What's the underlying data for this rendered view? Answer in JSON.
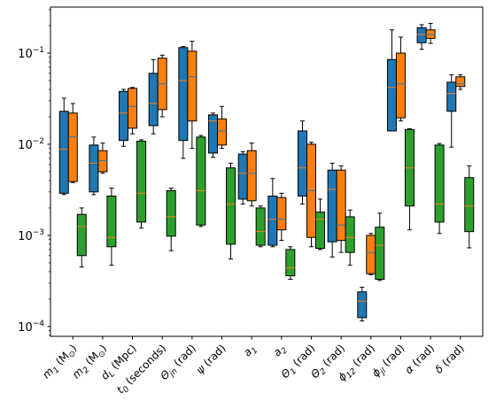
{
  "chart_data": {
    "type": "boxplot",
    "yscale": "log",
    "ylim": [
      7.8e-05,
      0.32
    ],
    "y_ticks": [
      {
        "value": 0.1,
        "base": "10",
        "exp": "−1"
      },
      {
        "value": 0.01,
        "base": "10",
        "exp": "−2"
      },
      {
        "value": 0.001,
        "base": "10",
        "exp": "−3"
      },
      {
        "value": 0.0001,
        "base": "10",
        "exp": "−4"
      }
    ],
    "categories": [
      {
        "main": "m",
        "sub": "1",
        "tail": " (M",
        "unitsub": "⊙",
        "close": ")"
      },
      {
        "main": "m",
        "sub": "2",
        "tail": " (M",
        "unitsub": "⊙",
        "close": ")"
      },
      {
        "main": "d",
        "sub": "L",
        "tail": " (Mpc)",
        "unitsub": "",
        "close": ""
      },
      {
        "main": "t",
        "sub": "0",
        "tail": " (seconds)",
        "unitsub": "",
        "close": ""
      },
      {
        "main": "Θ",
        "sub": "jn",
        "tail": " (rad)",
        "unitsub": "",
        "close": ""
      },
      {
        "main": "ψ",
        "sub": "",
        "tail": " (rad)",
        "unitsub": "",
        "close": ""
      },
      {
        "main": "a",
        "sub": "1",
        "tail": "",
        "unitsub": "",
        "close": ""
      },
      {
        "main": "a",
        "sub": "2",
        "tail": "",
        "unitsub": "",
        "close": ""
      },
      {
        "main": "Θ",
        "sub": "1",
        "tail": " (rad)",
        "unitsub": "",
        "close": ""
      },
      {
        "main": "Θ",
        "sub": "2",
        "tail": " (rad)",
        "unitsub": "",
        "close": ""
      },
      {
        "main": "ϕ",
        "sub": "12",
        "tail": " (rad)",
        "unitsub": "",
        "close": ""
      },
      {
        "main": "ϕ",
        "sub": "jl",
        "tail": " (rad)",
        "unitsub": "",
        "close": ""
      },
      {
        "main": "α",
        "sub": "",
        "tail": " (rad)",
        "unitsub": "",
        "close": ""
      },
      {
        "main": "δ",
        "sub": "",
        "tail": " (rad)",
        "unitsub": "",
        "close": ""
      }
    ],
    "series": [
      {
        "color": "#1f77b4",
        "boxes": [
          {
            "min": 0.0028,
            "q1": 0.0029,
            "median": 0.0088,
            "q3": 0.023,
            "max": 0.032
          },
          {
            "min": 0.0028,
            "q1": 0.003,
            "median": 0.0062,
            "q3": 0.0098,
            "max": 0.012
          },
          {
            "min": 0.0095,
            "q1": 0.011,
            "median": 0.022,
            "q3": 0.038,
            "max": 0.04
          },
          {
            "min": 0.013,
            "q1": 0.016,
            "median": 0.028,
            "q3": 0.06,
            "max": 0.085
          },
          {
            "min": 0.007,
            "q1": 0.011,
            "median": 0.05,
            "q3": 0.115,
            "max": 0.118
          },
          {
            "min": 0.0072,
            "q1": 0.008,
            "median": 0.018,
            "q3": 0.021,
            "max": 0.022
          },
          {
            "min": 0.0022,
            "q1": 0.0025,
            "median": 0.0048,
            "q3": 0.0078,
            "max": 0.0083
          },
          {
            "min": 0.00075,
            "q1": 0.00078,
            "median": 0.0015,
            "q3": 0.0027,
            "max": 0.0042
          },
          {
            "min": 0.0022,
            "q1": 0.0027,
            "median": 0.0055,
            "q3": 0.014,
            "max": 0.018
          },
          {
            "min": 0.00058,
            "q1": 0.00085,
            "median": 0.0032,
            "q3": 0.0052,
            "max": 0.0062
          },
          {
            "min": 0.000115,
            "q1": 0.000125,
            "median": 0.00019,
            "q3": 0.00024,
            "max": 0.00027
          },
          {
            "min": 0.014,
            "q1": 0.014,
            "median": 0.042,
            "q3": 0.085,
            "max": 0.18
          },
          {
            "min": 0.11,
            "q1": 0.13,
            "median": 0.16,
            "q3": 0.19,
            "max": 0.205
          },
          {
            "min": 0.0093,
            "q1": 0.023,
            "median": 0.036,
            "q3": 0.048,
            "max": 0.058
          }
        ]
      },
      {
        "color": "#ff7f0e",
        "boxes": [
          {
            "min": 0.0038,
            "q1": 0.0039,
            "median": 0.012,
            "q3": 0.022,
            "max": 0.028
          },
          {
            "min": 0.0048,
            "q1": 0.005,
            "median": 0.0066,
            "q3": 0.0085,
            "max": 0.0103
          },
          {
            "min": 0.013,
            "q1": 0.015,
            "median": 0.026,
            "q3": 0.041,
            "max": 0.042
          },
          {
            "min": 0.02,
            "q1": 0.024,
            "median": 0.046,
            "q3": 0.088,
            "max": 0.095
          },
          {
            "min": 0.009,
            "q1": 0.018,
            "median": 0.055,
            "q3": 0.105,
            "max": 0.135
          },
          {
            "min": 0.009,
            "q1": 0.0098,
            "median": 0.014,
            "q3": 0.019,
            "max": 0.026
          },
          {
            "min": 0.0021,
            "q1": 0.0024,
            "median": 0.0048,
            "q3": 0.0085,
            "max": 0.0103
          },
          {
            "min": 0.00088,
            "q1": 0.00115,
            "median": 0.0015,
            "q3": 0.0026,
            "max": 0.0029
          },
          {
            "min": 0.00075,
            "q1": 0.00095,
            "median": 0.0031,
            "q3": 0.01,
            "max": 0.0105
          },
          {
            "min": 0.00065,
            "q1": 0.00088,
            "median": 0.0013,
            "q3": 0.0052,
            "max": 0.0058
          },
          {
            "min": 0.00037,
            "q1": 0.00038,
            "median": 0.00065,
            "q3": 0.001,
            "max": 0.00105
          },
          {
            "min": 0.018,
            "q1": 0.0195,
            "median": 0.046,
            "q3": 0.1,
            "max": 0.15
          },
          {
            "min": 0.128,
            "q1": 0.145,
            "median": 0.16,
            "q3": 0.18,
            "max": 0.212
          },
          {
            "min": 0.04,
            "q1": 0.043,
            "median": 0.046,
            "q3": 0.055,
            "max": 0.058
          }
        ]
      },
      {
        "color": "#2ca02c",
        "boxes": [
          {
            "min": 0.00045,
            "q1": 0.0006,
            "median": 0.00125,
            "q3": 0.0017,
            "max": 0.002
          },
          {
            "min": 0.00047,
            "q1": 0.00075,
            "median": 0.00095,
            "q3": 0.0027,
            "max": 0.0033
          },
          {
            "min": 0.0012,
            "q1": 0.0014,
            "median": 0.0029,
            "q3": 0.0108,
            "max": 0.0112
          },
          {
            "min": 0.00068,
            "q1": 0.00098,
            "median": 0.0016,
            "q3": 0.0031,
            "max": 0.0033
          },
          {
            "min": 0.00125,
            "q1": 0.0013,
            "median": 0.0031,
            "q3": 0.012,
            "max": 0.0125
          },
          {
            "min": 0.00055,
            "q1": 0.0008,
            "median": 0.0022,
            "q3": 0.0055,
            "max": 0.0062
          },
          {
            "min": 0.00075,
            "q1": 0.00078,
            "median": 0.0011,
            "q3": 0.002,
            "max": 0.0021
          },
          {
            "min": 0.00033,
            "q1": 0.00036,
            "median": 0.00044,
            "q3": 0.0007,
            "max": 0.00075
          },
          {
            "min": 0.0007,
            "q1": 0.00072,
            "median": 0.0015,
            "q3": 0.0018,
            "max": 0.0025
          },
          {
            "min": 0.00047,
            "q1": 0.00065,
            "median": 0.00095,
            "q3": 0.0016,
            "max": 0.0019
          },
          {
            "min": 0.00032,
            "q1": 0.00033,
            "median": 0.00078,
            "q3": 0.00123,
            "max": 0.00175
          },
          {
            "min": 0.00115,
            "q1": 0.0021,
            "median": 0.0055,
            "q3": 0.0145,
            "max": 0.0148
          },
          {
            "min": 0.00105,
            "q1": 0.0014,
            "median": 0.0022,
            "q3": 0.0098,
            "max": 0.0102
          },
          {
            "min": 0.00073,
            "q1": 0.0011,
            "median": 0.0021,
            "q3": 0.0043,
            "max": 0.0058
          }
        ]
      }
    ],
    "median_colors": [
      "#ff7f0e",
      "#1f77b4",
      "#ff7f0e"
    ],
    "grid": false,
    "legend": false
  }
}
